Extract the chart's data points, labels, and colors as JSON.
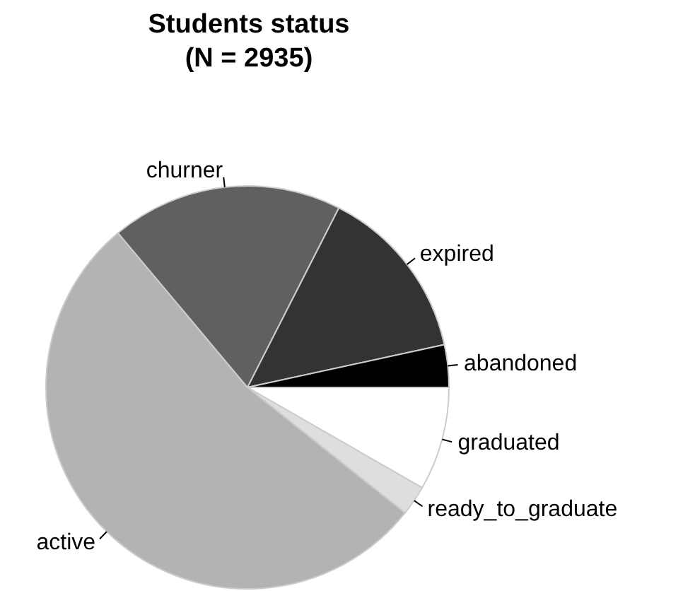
{
  "chart_data": {
    "type": "pie",
    "title": "Students status",
    "subtitle": "(N = 2935)",
    "categories": [
      "graduated",
      "ready_to_graduate",
      "active",
      "churner",
      "expired",
      "abandoned"
    ],
    "values": [
      8.3,
      2.4,
      53.2,
      18.6,
      14.1,
      3.4
    ],
    "colors": [
      "#ffffff",
      "#dedede",
      "#b3b3b3",
      "#606060",
      "#333333",
      "#000000"
    ],
    "legend": false
  }
}
